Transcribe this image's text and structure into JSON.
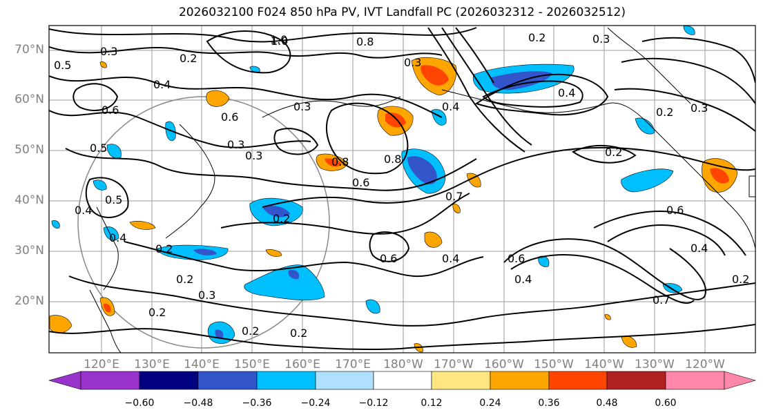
{
  "map": {
    "title": "2026032100 F024 850 hPa PV, IVT Landfall PC (2026032312 - 2026032512)",
    "lat_labels": [
      "70°N",
      "60°N",
      "50°N",
      "40°N",
      "30°N",
      "20°N"
    ],
    "lon_labels": [
      "120°E",
      "130°E",
      "140°E",
      "150°E",
      "160°E",
      "170°E",
      "180°W",
      "170°W",
      "160°W",
      "150°W",
      "140°W",
      "130°W",
      "120°W"
    ],
    "contour_labels": [
      "0.3",
      "1.0",
      "0.8",
      "0.5",
      "0.2",
      "0.4",
      "0.6",
      "0.3",
      "0.8",
      "0.5",
      "0.4",
      "0.6",
      "0.3",
      "0.5",
      "0.4",
      "0.3",
      "0.8",
      "0.6",
      "0.2",
      "0.7",
      "0.4",
      "0.3",
      "1.0",
      "0.6",
      "0.2",
      "0.2",
      "0.3",
      "0.2",
      "0.2",
      "0.2",
      "0.6",
      "0.4",
      "0.4",
      "0.2",
      "0.4",
      "0.3",
      "0.6",
      "0.4",
      "0.2",
      "0.7",
      "0.2",
      "0.3",
      "0.2"
    ],
    "colorbar": {
      "tick_labels": [
        "−0.60",
        "−0.48",
        "−0.36",
        "−0.24",
        "−0.12",
        "0.12",
        "0.24",
        "0.36",
        "0.48",
        "0.60"
      ],
      "colors": [
        "#9933cc",
        "#000080",
        "#3355cc",
        "#00bfff",
        "#b0e0ff",
        "#ffffff",
        "#ffe680",
        "#ffa500",
        "#ff4500",
        "#b22222",
        "#ff88aa"
      ]
    }
  }
}
